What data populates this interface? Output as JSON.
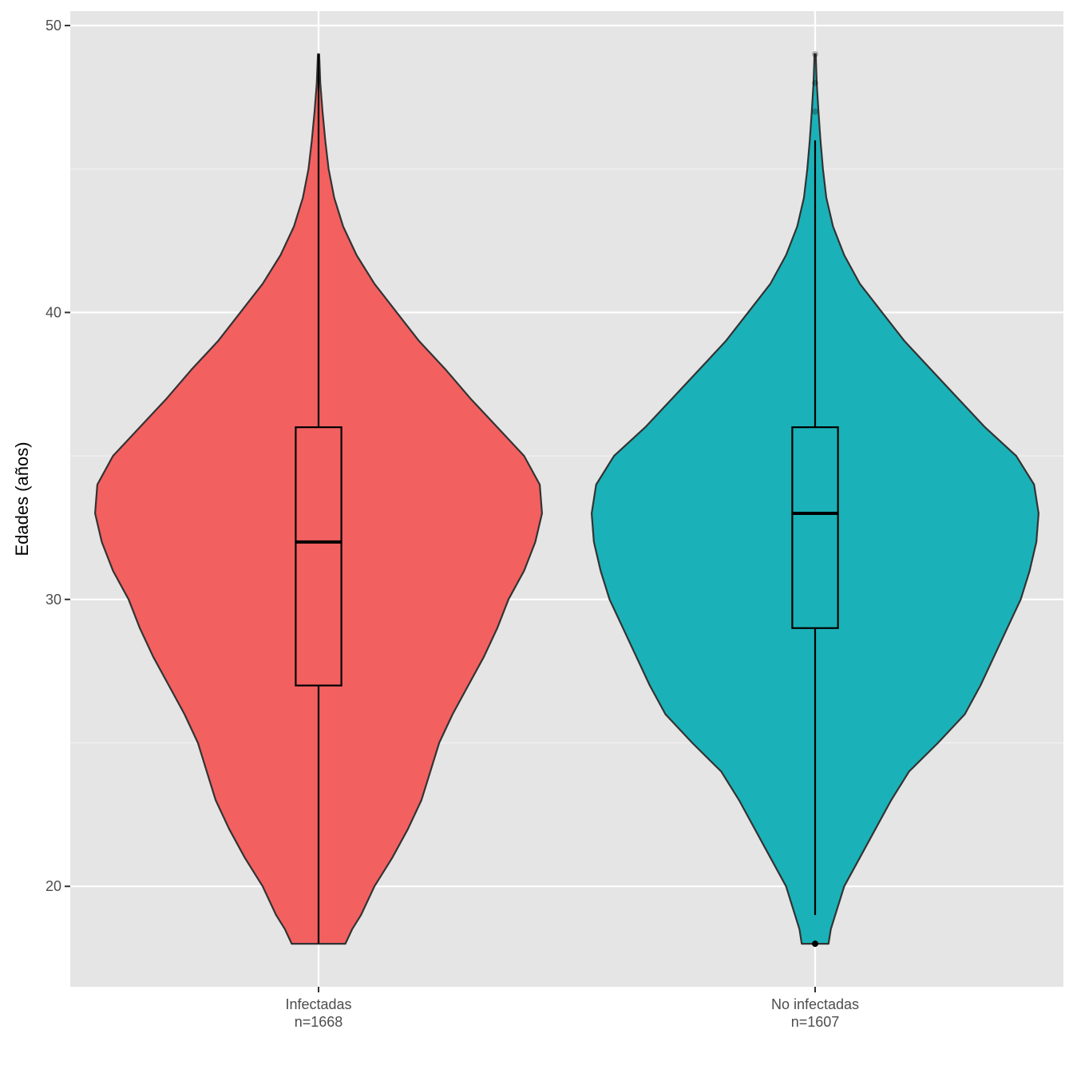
{
  "chart_data": {
    "type": "violin",
    "title": "",
    "xlabel": "",
    "ylabel": "Edades (años)",
    "ylim": [
      16.5,
      50.5
    ],
    "y_ticks": [
      20,
      30,
      40,
      50
    ],
    "grid": true,
    "legend": "none",
    "categories": [
      {
        "label_line1": "Infectadas",
        "label_line2": "n=1668",
        "color": "#F36060",
        "box": {
          "min": 18,
          "q1": 27,
          "median": 32,
          "q3": 36,
          "max": 49
        },
        "outliers": [],
        "density": [
          [
            18,
            0.12
          ],
          [
            18.5,
            0.15
          ],
          [
            19,
            0.19
          ],
          [
            20,
            0.25
          ],
          [
            21,
            0.33
          ],
          [
            22,
            0.4
          ],
          [
            23,
            0.46
          ],
          [
            24,
            0.5
          ],
          [
            25,
            0.54
          ],
          [
            26,
            0.6
          ],
          [
            27,
            0.67
          ],
          [
            28,
            0.74
          ],
          [
            29,
            0.8
          ],
          [
            30,
            0.85
          ],
          [
            31,
            0.92
          ],
          [
            32,
            0.97
          ],
          [
            33,
            1.0
          ],
          [
            34,
            0.99
          ],
          [
            35,
            0.92
          ],
          [
            36,
            0.8
          ],
          [
            37,
            0.68
          ],
          [
            38,
            0.57
          ],
          [
            39,
            0.45
          ],
          [
            40,
            0.35
          ],
          [
            41,
            0.25
          ],
          [
            42,
            0.17
          ],
          [
            43,
            0.11
          ],
          [
            44,
            0.07
          ],
          [
            45,
            0.045
          ],
          [
            46,
            0.03
          ],
          [
            47,
            0.018
          ],
          [
            48,
            0.008
          ],
          [
            49,
            0.003
          ]
        ]
      },
      {
        "label_line1": "No infectadas",
        "label_line2": "n=1607",
        "color": "#1AB2B8",
        "box": {
          "min": 19,
          "q1": 29,
          "median": 33,
          "q3": 36,
          "max": 46
        },
        "outliers": [
          18,
          47,
          48,
          49
        ],
        "density": [
          [
            18,
            0.06
          ],
          [
            18.5,
            0.07
          ],
          [
            19,
            0.09
          ],
          [
            20,
            0.13
          ],
          [
            21,
            0.2
          ],
          [
            22,
            0.27
          ],
          [
            23,
            0.34
          ],
          [
            24,
            0.42
          ],
          [
            25,
            0.55
          ],
          [
            26,
            0.67
          ],
          [
            27,
            0.74
          ],
          [
            28,
            0.8
          ],
          [
            29,
            0.86
          ],
          [
            30,
            0.92
          ],
          [
            31,
            0.96
          ],
          [
            32,
            0.99
          ],
          [
            33,
            1.0
          ],
          [
            34,
            0.98
          ],
          [
            35,
            0.9
          ],
          [
            36,
            0.76
          ],
          [
            37,
            0.64
          ],
          [
            38,
            0.52
          ],
          [
            39,
            0.4
          ],
          [
            40,
            0.3
          ],
          [
            41,
            0.2
          ],
          [
            42,
            0.13
          ],
          [
            43,
            0.08
          ],
          [
            44,
            0.05
          ],
          [
            45,
            0.035
          ],
          [
            46,
            0.024
          ],
          [
            47,
            0.015
          ],
          [
            48,
            0.007
          ],
          [
            49,
            0.003
          ]
        ]
      }
    ]
  }
}
